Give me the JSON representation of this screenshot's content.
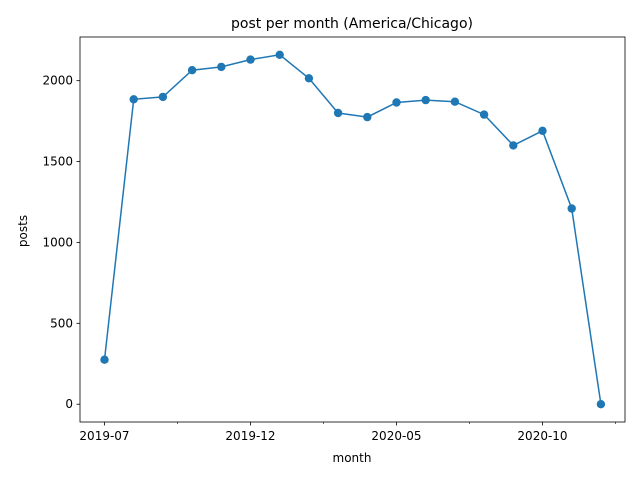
{
  "chart_data": {
    "type": "line",
    "title": "post per month (America/Chicago)",
    "xlabel": "month",
    "ylabel": "posts",
    "x": [
      "2019-07",
      "2019-08",
      "2019-09",
      "2019-10",
      "2019-11",
      "2019-12",
      "2020-01",
      "2020-02",
      "2020-03",
      "2020-04",
      "2020-05",
      "2020-06",
      "2020-07",
      "2020-08",
      "2020-09",
      "2020-10",
      "2020-11",
      "2020-12"
    ],
    "series": [
      {
        "values": [
          275,
          1885,
          1900,
          2065,
          2085,
          2130,
          2160,
          2015,
          1800,
          1775,
          1865,
          1880,
          1870,
          1790,
          1600,
          1690,
          1210,
          0
        ]
      }
    ],
    "x_tick_labels": [
      "2019-07",
      "2019-12",
      "2020-05",
      "2020-10"
    ],
    "y_ticks": [
      0,
      500,
      1000,
      1500,
      2000
    ],
    "ylim": [
      -110,
      2270
    ],
    "grid": false,
    "marker": "circle",
    "line_color": "#1f77b4"
  }
}
